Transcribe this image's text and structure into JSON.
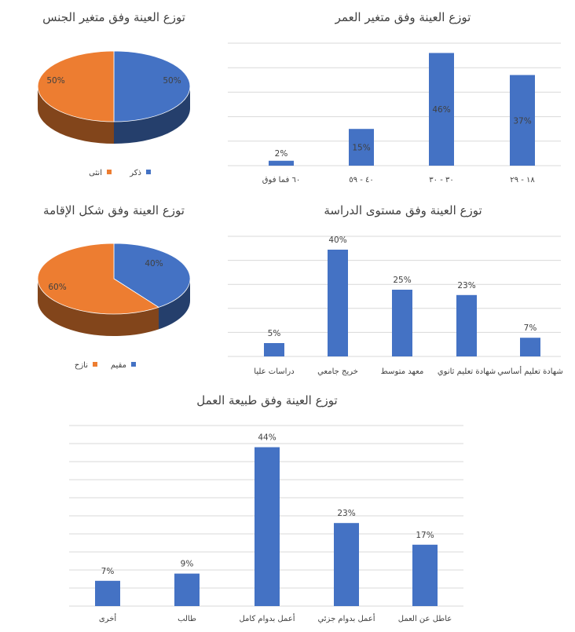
{
  "colors": {
    "blue": "#4472C4",
    "orange": "#ED7D31",
    "grid": "#D9D9D9",
    "text": "#404040"
  },
  "chart_data": [
    {
      "id": "age",
      "type": "bar",
      "title": "توزع العينة وفق متغير العمر",
      "categories": [
        "١٨ - ٢٩",
        "٣٠ - ٣٠",
        "٤٠ - ٥٩",
        "٦٠ فما فوق"
      ],
      "values": [
        37,
        46,
        15,
        2
      ],
      "value_labels": [
        "37%",
        "46%",
        "15%",
        "2%"
      ],
      "label_position": "inside",
      "ylim": [
        0,
        50
      ]
    },
    {
      "id": "gender",
      "type": "pie",
      "title": "توزع العينة وفق متغير الجنس",
      "slices": [
        {
          "name": "ذكر",
          "value": 50,
          "label": "50%",
          "color": "#4472C4"
        },
        {
          "name": "انثى",
          "value": 50,
          "label": "50%",
          "color": "#ED7D31"
        }
      ],
      "legend": "bottom"
    },
    {
      "id": "education",
      "type": "bar",
      "title": "توزع العينة وفق مستوى الدراسة",
      "categories": [
        "شهادة تعليم أساسي",
        "شهادة تعليم ثانوي",
        "معهد متوسط",
        "خريج جامعي",
        "دراسات عليا"
      ],
      "values": [
        7,
        23,
        25,
        40,
        5
      ],
      "value_labels": [
        "7%",
        "23%",
        "25%",
        "40%",
        "5%"
      ],
      "label_position": "above",
      "ylim": [
        0,
        45
      ]
    },
    {
      "id": "residence",
      "type": "pie",
      "title": "توزع العينة وفق شكل الإقامة",
      "slices": [
        {
          "name": "مقيم",
          "value": 40,
          "label": "40%",
          "color": "#4472C4"
        },
        {
          "name": "نازح",
          "value": 60,
          "label": "60%",
          "color": "#ED7D31"
        }
      ],
      "legend": "bottom"
    },
    {
      "id": "work",
      "type": "bar",
      "title": "توزع العينة وفق طبيعة العمل",
      "categories": [
        "عاطل عن العمل",
        "أعمل بدوام جزئي",
        "أعمل بدوام كامل",
        "طالب",
        "أخرى"
      ],
      "values": [
        17,
        23,
        44,
        9,
        7
      ],
      "value_labels": [
        "17%",
        "23%",
        "44%",
        "9%",
        "7%"
      ],
      "label_position": "above",
      "ylim": [
        0,
        50
      ]
    }
  ]
}
